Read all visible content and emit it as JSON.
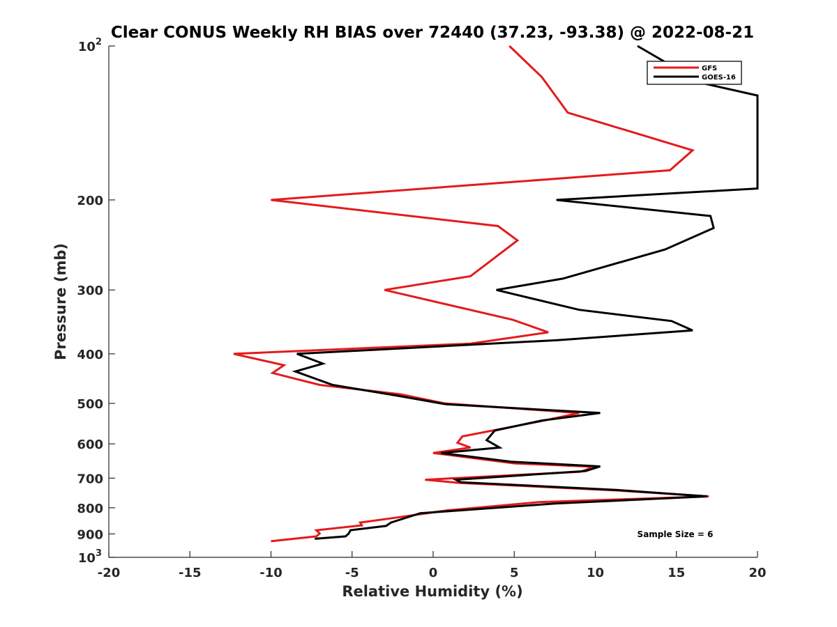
{
  "chart_data": {
    "type": "line",
    "title": "Clear CONUS Weekly RH BIAS over 72440 (37.23, -93.38) @ 2022-08-21",
    "xlabel": "Relative Humidity (%)",
    "ylabel": "Pressure (mb)",
    "xlim": [
      -20,
      20
    ],
    "ylim": [
      100,
      1000
    ],
    "y_scale": "log",
    "y_reversed": true,
    "grid": false,
    "legend_position": "top-right",
    "x_ticks": [
      "-20",
      "-15",
      "-10",
      "-5",
      "0",
      "5",
      "10",
      "15",
      "20"
    ],
    "y_ticks": [
      {
        "base": "10",
        "exp": "2",
        "value": 100
      },
      {
        "label": "200",
        "value": 200
      },
      {
        "label": "300",
        "value": 300
      },
      {
        "label": "400",
        "value": 400
      },
      {
        "label": "500",
        "value": 500
      },
      {
        "label": "600",
        "value": 600
      },
      {
        "label": "700",
        "value": 700
      },
      {
        "label": "800",
        "value": 800
      },
      {
        "label": "900",
        "value": 900
      },
      {
        "base": "10",
        "exp": "3",
        "value": 1000
      }
    ],
    "series": [
      {
        "name": "GFS",
        "color": "#e41a1c",
        "points": [
          [
            4.7,
            100
          ],
          [
            6.7,
            115
          ],
          [
            8.3,
            135
          ],
          [
            16.0,
            160
          ],
          [
            14.6,
            175
          ],
          [
            -10.0,
            200
          ],
          [
            4.0,
            225
          ],
          [
            5.2,
            240
          ],
          [
            2.3,
            282
          ],
          [
            -3.0,
            300
          ],
          [
            4.9,
            343
          ],
          [
            7.1,
            363
          ],
          [
            2.3,
            382
          ],
          [
            -12.3,
            400
          ],
          [
            -9.2,
            421
          ],
          [
            -9.9,
            436
          ],
          [
            -7.0,
            460
          ],
          [
            -2.0,
            480
          ],
          [
            0.7,
            500
          ],
          [
            9.0,
            522
          ],
          [
            6.6,
            542
          ],
          [
            1.8,
            580
          ],
          [
            1.5,
            597
          ],
          [
            2.3,
            610
          ],
          [
            0.0,
            625
          ],
          [
            5.0,
            655
          ],
          [
            9.9,
            665
          ],
          [
            9.1,
            680
          ],
          [
            -0.5,
            705
          ],
          [
            1.6,
            715
          ],
          [
            11.3,
            740
          ],
          [
            17.0,
            760
          ],
          [
            6.5,
            780
          ],
          [
            0.8,
            810
          ],
          [
            -2.5,
            838
          ],
          [
            -4.5,
            855
          ],
          [
            -4.4,
            866
          ],
          [
            -7.2,
            885
          ],
          [
            -7.0,
            898
          ],
          [
            -7.2,
            910
          ],
          [
            -10.0,
            930
          ]
        ]
      },
      {
        "name": "GOES-16",
        "color": "#000000",
        "points": [
          [
            12.6,
            100
          ],
          [
            16.5,
            118
          ],
          [
            20.0,
            125
          ],
          [
            20.0,
            190
          ],
          [
            7.6,
            200
          ],
          [
            17.1,
            215
          ],
          [
            17.3,
            227
          ],
          [
            14.3,
            250
          ],
          [
            8.0,
            285
          ],
          [
            3.9,
            300
          ],
          [
            9.0,
            328
          ],
          [
            14.7,
            345
          ],
          [
            16.0,
            360
          ],
          [
            7.7,
            376
          ],
          [
            -8.4,
            400
          ],
          [
            -6.8,
            418
          ],
          [
            -8.5,
            433
          ],
          [
            -6.2,
            460
          ],
          [
            -2.2,
            483
          ],
          [
            0.8,
            502
          ],
          [
            10.3,
            522
          ],
          [
            6.7,
            540
          ],
          [
            3.8,
            565
          ],
          [
            3.3,
            590
          ],
          [
            4.1,
            610
          ],
          [
            0.5,
            625
          ],
          [
            4.8,
            650
          ],
          [
            10.3,
            664
          ],
          [
            9.4,
            678
          ],
          [
            1.4,
            705
          ],
          [
            1.7,
            713
          ],
          [
            11.3,
            738
          ],
          [
            16.9,
            760
          ],
          [
            7.5,
            785
          ],
          [
            -0.8,
            820
          ],
          [
            -2.6,
            855
          ],
          [
            -2.9,
            868
          ],
          [
            -5.1,
            885
          ],
          [
            -5.2,
            898
          ],
          [
            -5.4,
            910
          ],
          [
            -7.3,
            920
          ]
        ]
      }
    ],
    "annotation": "Sample Size = 6"
  }
}
